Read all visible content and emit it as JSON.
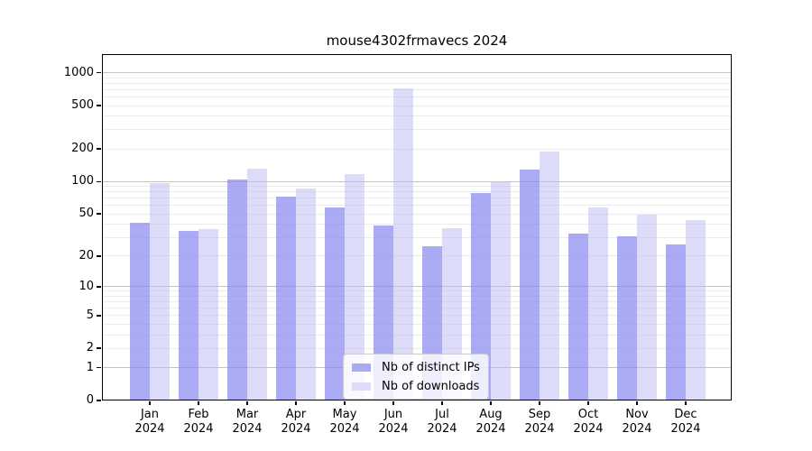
{
  "chart_data": {
    "type": "bar",
    "title": "mouse4302frmavecs 2024",
    "categories": [
      "Jan 2024",
      "Feb 2024",
      "Mar 2024",
      "Apr 2024",
      "May 2024",
      "Jun 2024",
      "Jul 2024",
      "Aug 2024",
      "Sep 2024",
      "Oct 2024",
      "Nov 2024",
      "Dec 2024"
    ],
    "series": [
      {
        "name": "Nb of distinct IPs",
        "color": "#aaaaf4",
        "values": [
          41,
          35,
          105,
          73,
          58,
          39,
          25,
          79,
          130,
          33,
          31,
          26
        ]
      },
      {
        "name": "Nb of downloads",
        "color": "#dcdcf8",
        "values": [
          97,
          36,
          131,
          87,
          117,
          715,
          37,
          98,
          190,
          58,
          49,
          44
        ]
      }
    ],
    "xlabel": "",
    "ylabel": "",
    "ytick_labels": [
      0,
      1,
      2,
      5,
      10,
      20,
      50,
      100,
      200,
      500,
      1000
    ],
    "yaxis_scale": "logarithmic (position proportional to log10(value+1))",
    "ylim": [
      0,
      1300
    ],
    "grid": "horizontal log-spaced gridlines; major at 1,10,100,1000; minor at 2-9,20-90,200-900",
    "legend_position": "inside, lower center",
    "bar_layout": "paired bars per month, distinct-IPs bar left, downloads bar right"
  }
}
